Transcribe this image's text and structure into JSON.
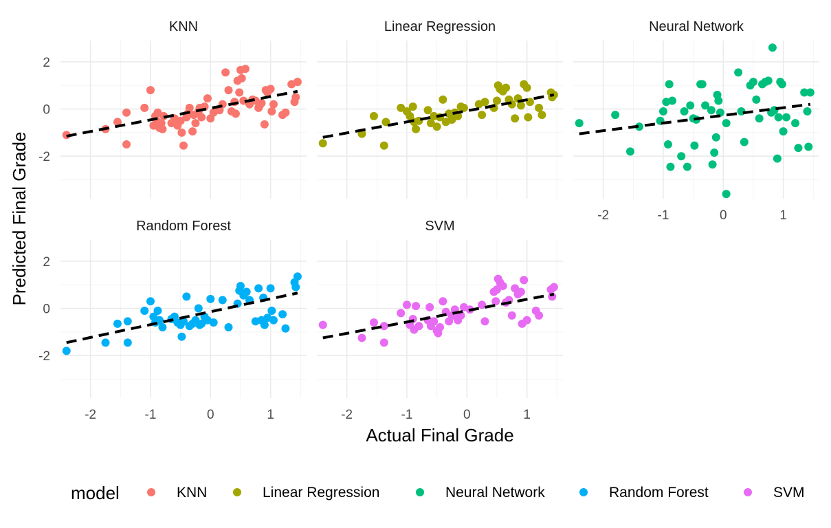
{
  "chart_data": {
    "type": "scatter",
    "xlabel": "Actual Final Grade",
    "ylabel": "Predicted Final Grade",
    "xlim": [
      -2.5,
      1.6
    ],
    "ylim": [
      -3.8,
      2.9
    ],
    "x_ticks": [
      -2,
      -1,
      0,
      1
    ],
    "y_ticks": [
      -2,
      0,
      2
    ],
    "grid": true,
    "legend": {
      "title": "model",
      "placement": "bottom",
      "entries": [
        "KNN",
        "Linear Regression",
        "Neural Network",
        "Random Forest",
        "SVM"
      ]
    },
    "series": [
      {
        "name": "KNN",
        "color": "#F8766D",
        "trend": {
          "x": [
            -2.4,
            1.45
          ],
          "y": [
            -1.15,
            0.75
          ]
        },
        "points": [
          [
            -2.4,
            -1.1
          ],
          [
            -1.75,
            -0.85
          ],
          [
            -1.55,
            -0.55
          ],
          [
            -1.4,
            -0.15
          ],
          [
            -1.4,
            -1.5
          ],
          [
            -1.1,
            0.05
          ],
          [
            -1.0,
            0.8
          ],
          [
            -0.95,
            -0.7
          ],
          [
            -0.92,
            -0.3
          ],
          [
            -0.9,
            -0.5
          ],
          [
            -0.88,
            -0.15
          ],
          [
            -0.85,
            -0.8
          ],
          [
            -0.82,
            -0.6
          ],
          [
            -0.8,
            -0.85
          ],
          [
            -0.78,
            -0.3
          ],
          [
            -0.65,
            -0.6
          ],
          [
            -0.6,
            -0.4
          ],
          [
            -0.55,
            -0.7
          ],
          [
            -0.5,
            -0.5
          ],
          [
            -0.48,
            -1.0
          ],
          [
            -0.45,
            -1.55
          ],
          [
            -0.4,
            -0.35
          ],
          [
            -0.38,
            -0.2
          ],
          [
            -0.35,
            0.05
          ],
          [
            -0.3,
            -0.95
          ],
          [
            -0.28,
            -0.25
          ],
          [
            -0.25,
            -0.6
          ],
          [
            -0.2,
            -0.1
          ],
          [
            -0.18,
            0.05
          ],
          [
            -0.15,
            -0.35
          ],
          [
            -0.1,
            0.1
          ],
          [
            -0.05,
            0.45
          ],
          [
            0.0,
            -0.4
          ],
          [
            0.05,
            -0.15
          ],
          [
            0.15,
            -0.05
          ],
          [
            0.2,
            0.2
          ],
          [
            0.25,
            1.55
          ],
          [
            0.3,
            0.8
          ],
          [
            0.35,
            -0.1
          ],
          [
            0.4,
            0.3
          ],
          [
            0.42,
            -0.2
          ],
          [
            0.45,
            1.2
          ],
          [
            0.48,
            0.7
          ],
          [
            0.5,
            1.65
          ],
          [
            0.52,
            1.3
          ],
          [
            0.55,
            0.35
          ],
          [
            0.58,
            1.7
          ],
          [
            0.65,
            0.2
          ],
          [
            0.7,
            0.4
          ],
          [
            0.75,
            0.35
          ],
          [
            0.8,
            0.05
          ],
          [
            0.82,
            0.15
          ],
          [
            0.85,
            0.25
          ],
          [
            0.9,
            -0.65
          ],
          [
            0.92,
            0.8
          ],
          [
            0.95,
            0.7
          ],
          [
            1.0,
            0.85
          ],
          [
            1.02,
            -0.1
          ],
          [
            1.05,
            0.2
          ],
          [
            1.2,
            -0.25
          ],
          [
            1.25,
            -0.15
          ],
          [
            1.35,
            1.05
          ],
          [
            1.4,
            0.3
          ],
          [
            1.42,
            0.5
          ],
          [
            1.45,
            1.15
          ]
        ]
      },
      {
        "name": "Linear Regression",
        "color": "#A3A500",
        "trend": {
          "x": [
            -2.4,
            1.45
          ],
          "y": [
            -1.2,
            0.6
          ]
        },
        "points": [
          [
            -2.4,
            -1.45
          ],
          [
            -1.75,
            -1.05
          ],
          [
            -1.55,
            -0.3
          ],
          [
            -1.38,
            -1.55
          ],
          [
            -1.35,
            -0.55
          ],
          [
            -1.1,
            0.05
          ],
          [
            -1.0,
            -0.1
          ],
          [
            -0.95,
            -0.3
          ],
          [
            -0.9,
            0.1
          ],
          [
            -0.88,
            -0.55
          ],
          [
            -0.85,
            -0.85
          ],
          [
            -0.8,
            -0.5
          ],
          [
            -0.65,
            -0.05
          ],
          [
            -0.6,
            -0.6
          ],
          [
            -0.55,
            -0.3
          ],
          [
            -0.5,
            -0.75
          ],
          [
            -0.45,
            -0.35
          ],
          [
            -0.4,
            0.4
          ],
          [
            -0.35,
            -0.55
          ],
          [
            -0.3,
            -0.2
          ],
          [
            -0.25,
            -0.45
          ],
          [
            -0.2,
            -0.15
          ],
          [
            -0.15,
            -0.3
          ],
          [
            -0.1,
            0.1
          ],
          [
            -0.05,
            0.05
          ],
          [
            0.2,
            0.2
          ],
          [
            0.25,
            -0.25
          ],
          [
            0.3,
            0.3
          ],
          [
            0.45,
            0.05
          ],
          [
            0.5,
            0.35
          ],
          [
            0.52,
            1.0
          ],
          [
            0.55,
            0.85
          ],
          [
            0.6,
            0.75
          ],
          [
            0.65,
            0.9
          ],
          [
            0.7,
            0.4
          ],
          [
            0.75,
            0.2
          ],
          [
            0.8,
            -0.4
          ],
          [
            0.85,
            0.45
          ],
          [
            0.9,
            0.15
          ],
          [
            0.95,
            1.05
          ],
          [
            1.0,
            0.9
          ],
          [
            1.02,
            -0.35
          ],
          [
            1.05,
            0.3
          ],
          [
            1.2,
            0.05
          ],
          [
            1.25,
            -0.25
          ],
          [
            1.4,
            0.7
          ],
          [
            1.42,
            0.5
          ],
          [
            1.45,
            0.6
          ]
        ]
      },
      {
        "name": "Neural Network",
        "color": "#00BF7D",
        "trend": {
          "x": [
            -2.4,
            1.45
          ],
          "y": [
            -1.05,
            0.2
          ]
        },
        "points": [
          [
            -2.4,
            -0.6
          ],
          [
            -1.8,
            -0.25
          ],
          [
            -1.55,
            -1.8
          ],
          [
            -1.4,
            -0.75
          ],
          [
            -1.05,
            -0.5
          ],
          [
            -1.0,
            -0.1
          ],
          [
            -0.95,
            0.3
          ],
          [
            -0.92,
            -1.5
          ],
          [
            -0.9,
            1.05
          ],
          [
            -0.88,
            -2.45
          ],
          [
            -0.85,
            0.35
          ],
          [
            -0.7,
            -2.0
          ],
          [
            -0.65,
            -0.1
          ],
          [
            -0.6,
            -2.45
          ],
          [
            -0.55,
            0.15
          ],
          [
            -0.5,
            -0.4
          ],
          [
            -0.48,
            -1.55
          ],
          [
            -0.45,
            -0.45
          ],
          [
            -0.38,
            1.05
          ],
          [
            -0.35,
            1.05
          ],
          [
            -0.3,
            0.15
          ],
          [
            -0.2,
            -0.05
          ],
          [
            -0.18,
            -2.35
          ],
          [
            -0.15,
            -1.85
          ],
          [
            -0.12,
            -1.2
          ],
          [
            -0.1,
            0.6
          ],
          [
            -0.08,
            0.35
          ],
          [
            -0.05,
            -0.15
          ],
          [
            0.05,
            -0.6
          ],
          [
            0.05,
            -3.6
          ],
          [
            0.25,
            1.55
          ],
          [
            0.3,
            -0.1
          ],
          [
            0.35,
            -1.4
          ],
          [
            0.45,
            1.0
          ],
          [
            0.5,
            1.15
          ],
          [
            0.55,
            0.4
          ],
          [
            0.6,
            -0.4
          ],
          [
            0.65,
            1.05
          ],
          [
            0.7,
            1.15
          ],
          [
            0.75,
            1.2
          ],
          [
            0.8,
            -0.15
          ],
          [
            0.82,
            2.6
          ],
          [
            0.85,
            -0.05
          ],
          [
            0.9,
            -2.1
          ],
          [
            0.92,
            -0.35
          ],
          [
            0.95,
            1.15
          ],
          [
            0.98,
            1.05
          ],
          [
            1.0,
            -0.95
          ],
          [
            1.05,
            -0.35
          ],
          [
            1.2,
            -0.6
          ],
          [
            1.25,
            -1.65
          ],
          [
            1.35,
            0.7
          ],
          [
            1.4,
            -0.1
          ],
          [
            1.42,
            -1.6
          ],
          [
            1.45,
            0.7
          ]
        ]
      },
      {
        "name": "Random Forest",
        "color": "#00B0F6",
        "trend": {
          "x": [
            -2.4,
            1.45
          ],
          "y": [
            -1.45,
            0.65
          ]
        },
        "points": [
          [
            -2.4,
            -1.8
          ],
          [
            -1.75,
            -1.45
          ],
          [
            -1.55,
            -0.65
          ],
          [
            -1.38,
            -0.55
          ],
          [
            -1.38,
            -1.45
          ],
          [
            -1.1,
            -0.1
          ],
          [
            -1.0,
            0.3
          ],
          [
            -0.95,
            -0.35
          ],
          [
            -0.92,
            -0.6
          ],
          [
            -0.88,
            -0.1
          ],
          [
            -0.85,
            -0.5
          ],
          [
            -0.8,
            -0.8
          ],
          [
            -0.65,
            -0.45
          ],
          [
            -0.6,
            -0.35
          ],
          [
            -0.55,
            -0.6
          ],
          [
            -0.5,
            -0.7
          ],
          [
            -0.48,
            -1.2
          ],
          [
            -0.45,
            -0.55
          ],
          [
            -0.4,
            0.5
          ],
          [
            -0.35,
            -0.75
          ],
          [
            -0.3,
            -0.65
          ],
          [
            -0.25,
            -0.5
          ],
          [
            -0.2,
            0.0
          ],
          [
            -0.18,
            -0.7
          ],
          [
            -0.15,
            -0.65
          ],
          [
            -0.1,
            -0.35
          ],
          [
            -0.05,
            -0.5
          ],
          [
            0.0,
            0.4
          ],
          [
            0.05,
            -0.6
          ],
          [
            0.2,
            0.35
          ],
          [
            0.3,
            -0.8
          ],
          [
            0.45,
            0.2
          ],
          [
            0.48,
            0.75
          ],
          [
            0.5,
            0.95
          ],
          [
            0.55,
            0.55
          ],
          [
            0.6,
            0.7
          ],
          [
            0.65,
            0.35
          ],
          [
            0.75,
            -0.55
          ],
          [
            0.8,
            0.85
          ],
          [
            0.85,
            -0.5
          ],
          [
            0.88,
            0.45
          ],
          [
            0.9,
            -0.7
          ],
          [
            0.95,
            -0.4
          ],
          [
            1.0,
            0.85
          ],
          [
            1.02,
            -0.1
          ],
          [
            1.05,
            -0.5
          ],
          [
            1.2,
            -0.25
          ],
          [
            1.25,
            -0.85
          ],
          [
            1.4,
            1.1
          ],
          [
            1.42,
            0.9
          ],
          [
            1.45,
            1.35
          ]
        ]
      },
      {
        "name": "SVM",
        "color": "#E76BF3",
        "trend": {
          "x": [
            -2.4,
            1.45
          ],
          "y": [
            -1.25,
            0.6
          ]
        },
        "points": [
          [
            -2.4,
            -0.7
          ],
          [
            -1.75,
            -1.25
          ],
          [
            -1.55,
            -0.6
          ],
          [
            -1.38,
            -1.45
          ],
          [
            -1.38,
            -0.75
          ],
          [
            -1.1,
            -0.2
          ],
          [
            -1.0,
            0.15
          ],
          [
            -0.95,
            -0.7
          ],
          [
            -0.9,
            -0.45
          ],
          [
            -0.88,
            -0.9
          ],
          [
            -0.85,
            0.1
          ],
          [
            -0.8,
            -0.75
          ],
          [
            -0.65,
            -0.5
          ],
          [
            -0.62,
            0.05
          ],
          [
            -0.6,
            -0.75
          ],
          [
            -0.55,
            -0.55
          ],
          [
            -0.5,
            -0.95
          ],
          [
            -0.48,
            -1.05
          ],
          [
            -0.45,
            -0.8
          ],
          [
            -0.4,
            0.3
          ],
          [
            -0.35,
            -0.15
          ],
          [
            -0.3,
            -0.55
          ],
          [
            -0.25,
            -0.3
          ],
          [
            -0.2,
            -0.05
          ],
          [
            -0.18,
            -0.35
          ],
          [
            -0.15,
            -0.5
          ],
          [
            -0.1,
            -0.3
          ],
          [
            -0.05,
            0.05
          ],
          [
            0.05,
            -0.05
          ],
          [
            0.25,
            0.15
          ],
          [
            0.3,
            -0.55
          ],
          [
            0.45,
            0.7
          ],
          [
            0.48,
            0.3
          ],
          [
            0.5,
            0.8
          ],
          [
            0.52,
            1.25
          ],
          [
            0.55,
            1.1
          ],
          [
            0.6,
            0.95
          ],
          [
            0.65,
            0.25
          ],
          [
            0.7,
            0.35
          ],
          [
            0.75,
            -0.3
          ],
          [
            0.8,
            0.85
          ],
          [
            0.85,
            0.6
          ],
          [
            0.9,
            0.7
          ],
          [
            0.92,
            -0.65
          ],
          [
            0.95,
            1.2
          ],
          [
            1.0,
            -0.5
          ],
          [
            1.15,
            -0.1
          ],
          [
            1.2,
            -0.3
          ],
          [
            1.4,
            0.8
          ],
          [
            1.42,
            0.5
          ],
          [
            1.45,
            0.9
          ]
        ]
      }
    ]
  }
}
